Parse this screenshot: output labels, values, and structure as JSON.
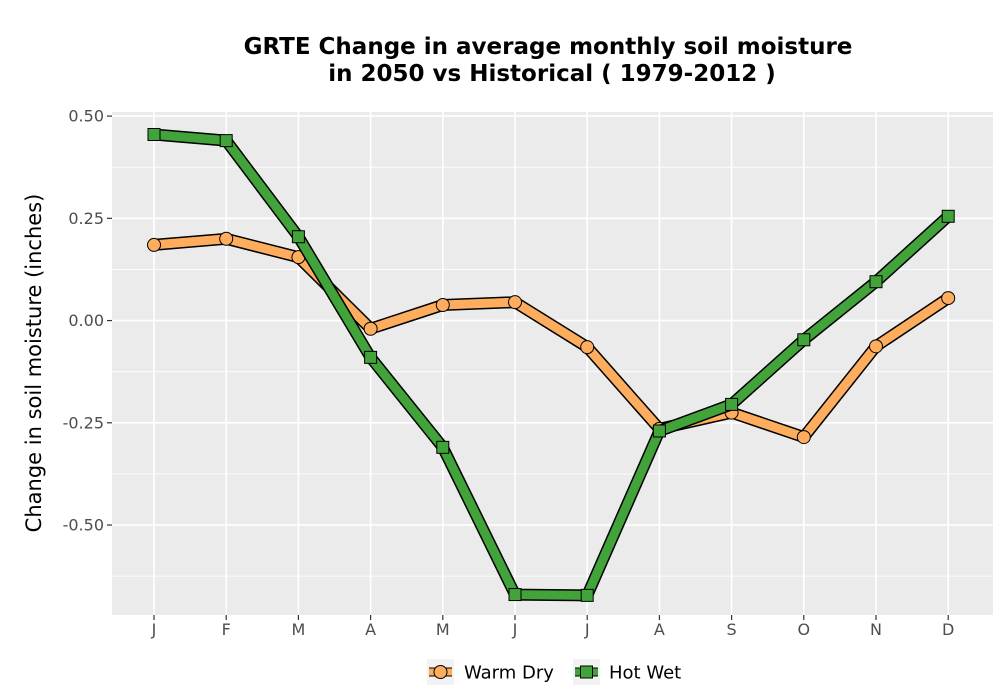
{
  "chart_data": {
    "type": "line",
    "title_line1": "GRTE  Change in average monthly soil moisture",
    "title_line2": "in 2050 vs Historical ( 1979-2012 )",
    "ylabel": "Change in soil moisture (inches)",
    "xlabel": "",
    "categories": [
      "J",
      "F",
      "M",
      "A",
      "M",
      "J",
      "J",
      "A",
      "S",
      "O",
      "N",
      "D"
    ],
    "ylim": [
      -0.72,
      0.51
    ],
    "yticks": [
      0.5,
      0.25,
      0.0,
      -0.25,
      -0.5
    ],
    "ytick_labels": [
      "0.50",
      "0.25",
      "0.00",
      "-0.25",
      "-0.50"
    ],
    "grid": true,
    "legend_position": "bottom",
    "series": [
      {
        "name": "Warm Dry",
        "color": "#FDAD5D",
        "marker": "circle",
        "values": [
          0.185,
          0.2,
          0.155,
          -0.02,
          0.038,
          0.045,
          -0.065,
          -0.265,
          -0.225,
          -0.285,
          -0.063,
          0.055
        ]
      },
      {
        "name": "Hot Wet",
        "color": "#41A33A",
        "marker": "square",
        "values": [
          0.455,
          0.44,
          0.205,
          -0.09,
          -0.31,
          -0.67,
          -0.672,
          -0.27,
          -0.205,
          -0.047,
          0.095,
          0.255
        ]
      }
    ]
  }
}
